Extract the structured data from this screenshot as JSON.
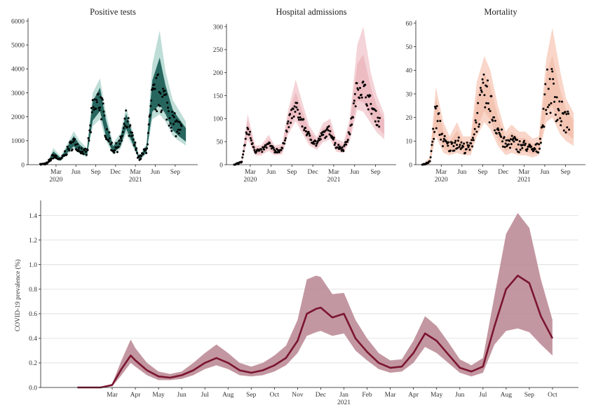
{
  "chart_data": [
    {
      "type": "scatter",
      "title": "Positive tests",
      "ylim": [
        0,
        6000
      ],
      "yticks": [
        0,
        1000,
        2000,
        3000,
        4000,
        5000,
        6000
      ],
      "month_ticks": [
        "Mar",
        "Jun",
        "Sep",
        "Dec",
        "Mar",
        "Jun",
        "Sep"
      ],
      "year_labels": [
        "2020",
        "2021"
      ],
      "band_color": "#b7d9d3",
      "fill_color": "#1e5f57",
      "point_color": "#000000",
      "series": [
        {
          "t": [
            0.0,
            0.05,
            0.09,
            0.14,
            0.18,
            0.23,
            0.27,
            0.32,
            0.36,
            0.41,
            0.45,
            0.5,
            0.55,
            0.59,
            0.64,
            0.68,
            0.73,
            0.77,
            0.82,
            0.86,
            0.91,
            0.95,
            1.0
          ],
          "y": [
            0,
            60,
            380,
            200,
            550,
            950,
            650,
            450,
            2200,
            2750,
            1500,
            600,
            900,
            1800,
            950,
            250,
            650,
            2700,
            3100,
            2600,
            1800,
            1500,
            1200
          ],
          "lo": [
            0,
            30,
            250,
            150,
            400,
            650,
            450,
            300,
            1600,
            1900,
            1000,
            420,
            650,
            1300,
            700,
            170,
            450,
            1900,
            2100,
            1800,
            1200,
            1000,
            800
          ],
          "hi": [
            0,
            120,
            700,
            350,
            800,
            1400,
            1000,
            700,
            3000,
            3600,
            2200,
            900,
            1300,
            2400,
            1300,
            350,
            900,
            4200,
            5600,
            3900,
            2700,
            2300,
            1800
          ]
        }
      ]
    },
    {
      "type": "scatter",
      "title": "Hospital admissions",
      "ylim": [
        0,
        300
      ],
      "yticks": [
        0,
        50,
        100,
        150,
        200,
        250,
        300
      ],
      "month_ticks": [
        "Mar",
        "Jun",
        "Sep",
        "Dec",
        "Mar",
        "Jun",
        "Sep"
      ],
      "year_labels": [
        "2020",
        "2021"
      ],
      "band_color": "#f3cfd4",
      "fill_color": "#e7a7b1",
      "point_color": "#000000",
      "series": [
        {
          "t": [
            0.0,
            0.05,
            0.09,
            0.14,
            0.18,
            0.23,
            0.27,
            0.32,
            0.36,
            0.41,
            0.45,
            0.5,
            0.55,
            0.59,
            0.64,
            0.68,
            0.73,
            0.77,
            0.82,
            0.86,
            0.91,
            0.95,
            1.0
          ],
          "y": [
            0,
            5,
            80,
            30,
            30,
            45,
            30,
            32,
            90,
            125,
            95,
            60,
            45,
            65,
            75,
            40,
            35,
            70,
            170,
            165,
            130,
            100,
            80
          ],
          "lo": [
            0,
            2,
            55,
            20,
            20,
            30,
            20,
            22,
            65,
            95,
            70,
            42,
            32,
            48,
            55,
            28,
            25,
            50,
            120,
            115,
            90,
            70,
            55
          ],
          "hi": [
            0,
            10,
            110,
            42,
            42,
            65,
            42,
            45,
            120,
            185,
            140,
            85,
            60,
            90,
            100,
            55,
            50,
            100,
            260,
            300,
            200,
            150,
            110
          ]
        }
      ]
    },
    {
      "type": "scatter",
      "title": "Mortality",
      "ylim": [
        0,
        60
      ],
      "yticks": [
        0,
        10,
        20,
        30,
        40,
        50,
        60
      ],
      "month_ticks": [
        "Mar",
        "Jun",
        "Sep",
        "Dec",
        "Mar",
        "Jun",
        "Sep"
      ],
      "year_labels": [
        "2020",
        "2021"
      ],
      "band_color": "#f8d2c3",
      "fill_color": "#f0b79f",
      "point_color": "#000000",
      "series": [
        {
          "t": [
            0.0,
            0.05,
            0.09,
            0.14,
            0.18,
            0.23,
            0.27,
            0.32,
            0.36,
            0.41,
            0.45,
            0.5,
            0.55,
            0.59,
            0.64,
            0.68,
            0.73,
            0.77,
            0.82,
            0.86,
            0.91,
            0.95,
            1.0
          ],
          "y": [
            0,
            1,
            22,
            10,
            7,
            10,
            7,
            7,
            20,
            30,
            25,
            15,
            8,
            10,
            8,
            8,
            6,
            7,
            30,
            32,
            22,
            18,
            15
          ],
          "lo": [
            0,
            0,
            12,
            5,
            4,
            5,
            4,
            4,
            12,
            18,
            15,
            8,
            4,
            5,
            4,
            4,
            3,
            4,
            18,
            20,
            13,
            10,
            8
          ],
          "hi": [
            0,
            3,
            33,
            18,
            12,
            18,
            12,
            12,
            35,
            46,
            40,
            25,
            14,
            17,
            14,
            14,
            11,
            12,
            45,
            58,
            40,
            28,
            22
          ]
        }
      ]
    },
    {
      "type": "line",
      "ylabel": "COVID-19 prevalence (%)",
      "ylim": [
        0,
        1.5
      ],
      "yticks": [
        "0.0",
        "0.2",
        "0.4",
        "0.6",
        "0.8",
        "1.0",
        "1.2",
        "1.4"
      ],
      "x_ticks": [
        "Mar",
        "Apr",
        "May",
        "Jun",
        "Jul",
        "Aug",
        "Sep",
        "Oct",
        "Nov",
        "Dec",
        "Jan",
        "Feb",
        "Mar",
        "Apr",
        "May",
        "Jun",
        "Jul",
        "Aug",
        "Sep",
        "Oct"
      ],
      "year_label": "2021",
      "grid": true,
      "line_color": "#7b1530",
      "band_color": "#b98590",
      "series": [
        {
          "x": [
            -1.5,
            -0.5,
            0.0,
            0.4,
            0.8,
            1.0,
            1.5,
            2.0,
            2.5,
            3.0,
            3.5,
            4.0,
            4.5,
            5.0,
            5.5,
            6.0,
            6.5,
            7.0,
            7.5,
            8.0,
            8.4,
            8.8,
            9.0,
            9.5,
            10.0,
            10.5,
            11.0,
            11.5,
            12.0,
            12.5,
            13.0,
            13.5,
            14.0,
            14.5,
            15.0,
            15.5,
            16.0,
            16.5,
            17.0,
            17.5,
            18.0,
            18.5,
            19.0
          ],
          "y": [
            0.0,
            0.0,
            0.02,
            0.15,
            0.26,
            0.22,
            0.14,
            0.09,
            0.08,
            0.1,
            0.14,
            0.2,
            0.24,
            0.2,
            0.14,
            0.12,
            0.14,
            0.18,
            0.24,
            0.38,
            0.6,
            0.64,
            0.65,
            0.57,
            0.6,
            0.4,
            0.29,
            0.2,
            0.16,
            0.17,
            0.28,
            0.44,
            0.38,
            0.27,
            0.16,
            0.13,
            0.17,
            0.5,
            0.8,
            0.91,
            0.85,
            0.58,
            0.4
          ],
          "lo": [
            0.0,
            0.0,
            0.01,
            0.1,
            0.2,
            0.17,
            0.1,
            0.06,
            0.06,
            0.07,
            0.1,
            0.15,
            0.18,
            0.15,
            0.1,
            0.09,
            0.1,
            0.13,
            0.18,
            0.28,
            0.42,
            0.45,
            0.46,
            0.42,
            0.44,
            0.3,
            0.22,
            0.15,
            0.12,
            0.13,
            0.2,
            0.33,
            0.28,
            0.2,
            0.12,
            0.09,
            0.12,
            0.35,
            0.46,
            0.48,
            0.45,
            0.35,
            0.26
          ],
          "hi": [
            0.0,
            0.0,
            0.03,
            0.22,
            0.39,
            0.32,
            0.2,
            0.13,
            0.11,
            0.13,
            0.2,
            0.28,
            0.35,
            0.28,
            0.2,
            0.17,
            0.2,
            0.26,
            0.34,
            0.55,
            0.88,
            0.91,
            0.9,
            0.76,
            0.77,
            0.55,
            0.4,
            0.28,
            0.22,
            0.23,
            0.38,
            0.58,
            0.5,
            0.37,
            0.23,
            0.18,
            0.24,
            0.75,
            1.25,
            1.42,
            1.3,
            0.88,
            0.55
          ]
        }
      ]
    }
  ]
}
